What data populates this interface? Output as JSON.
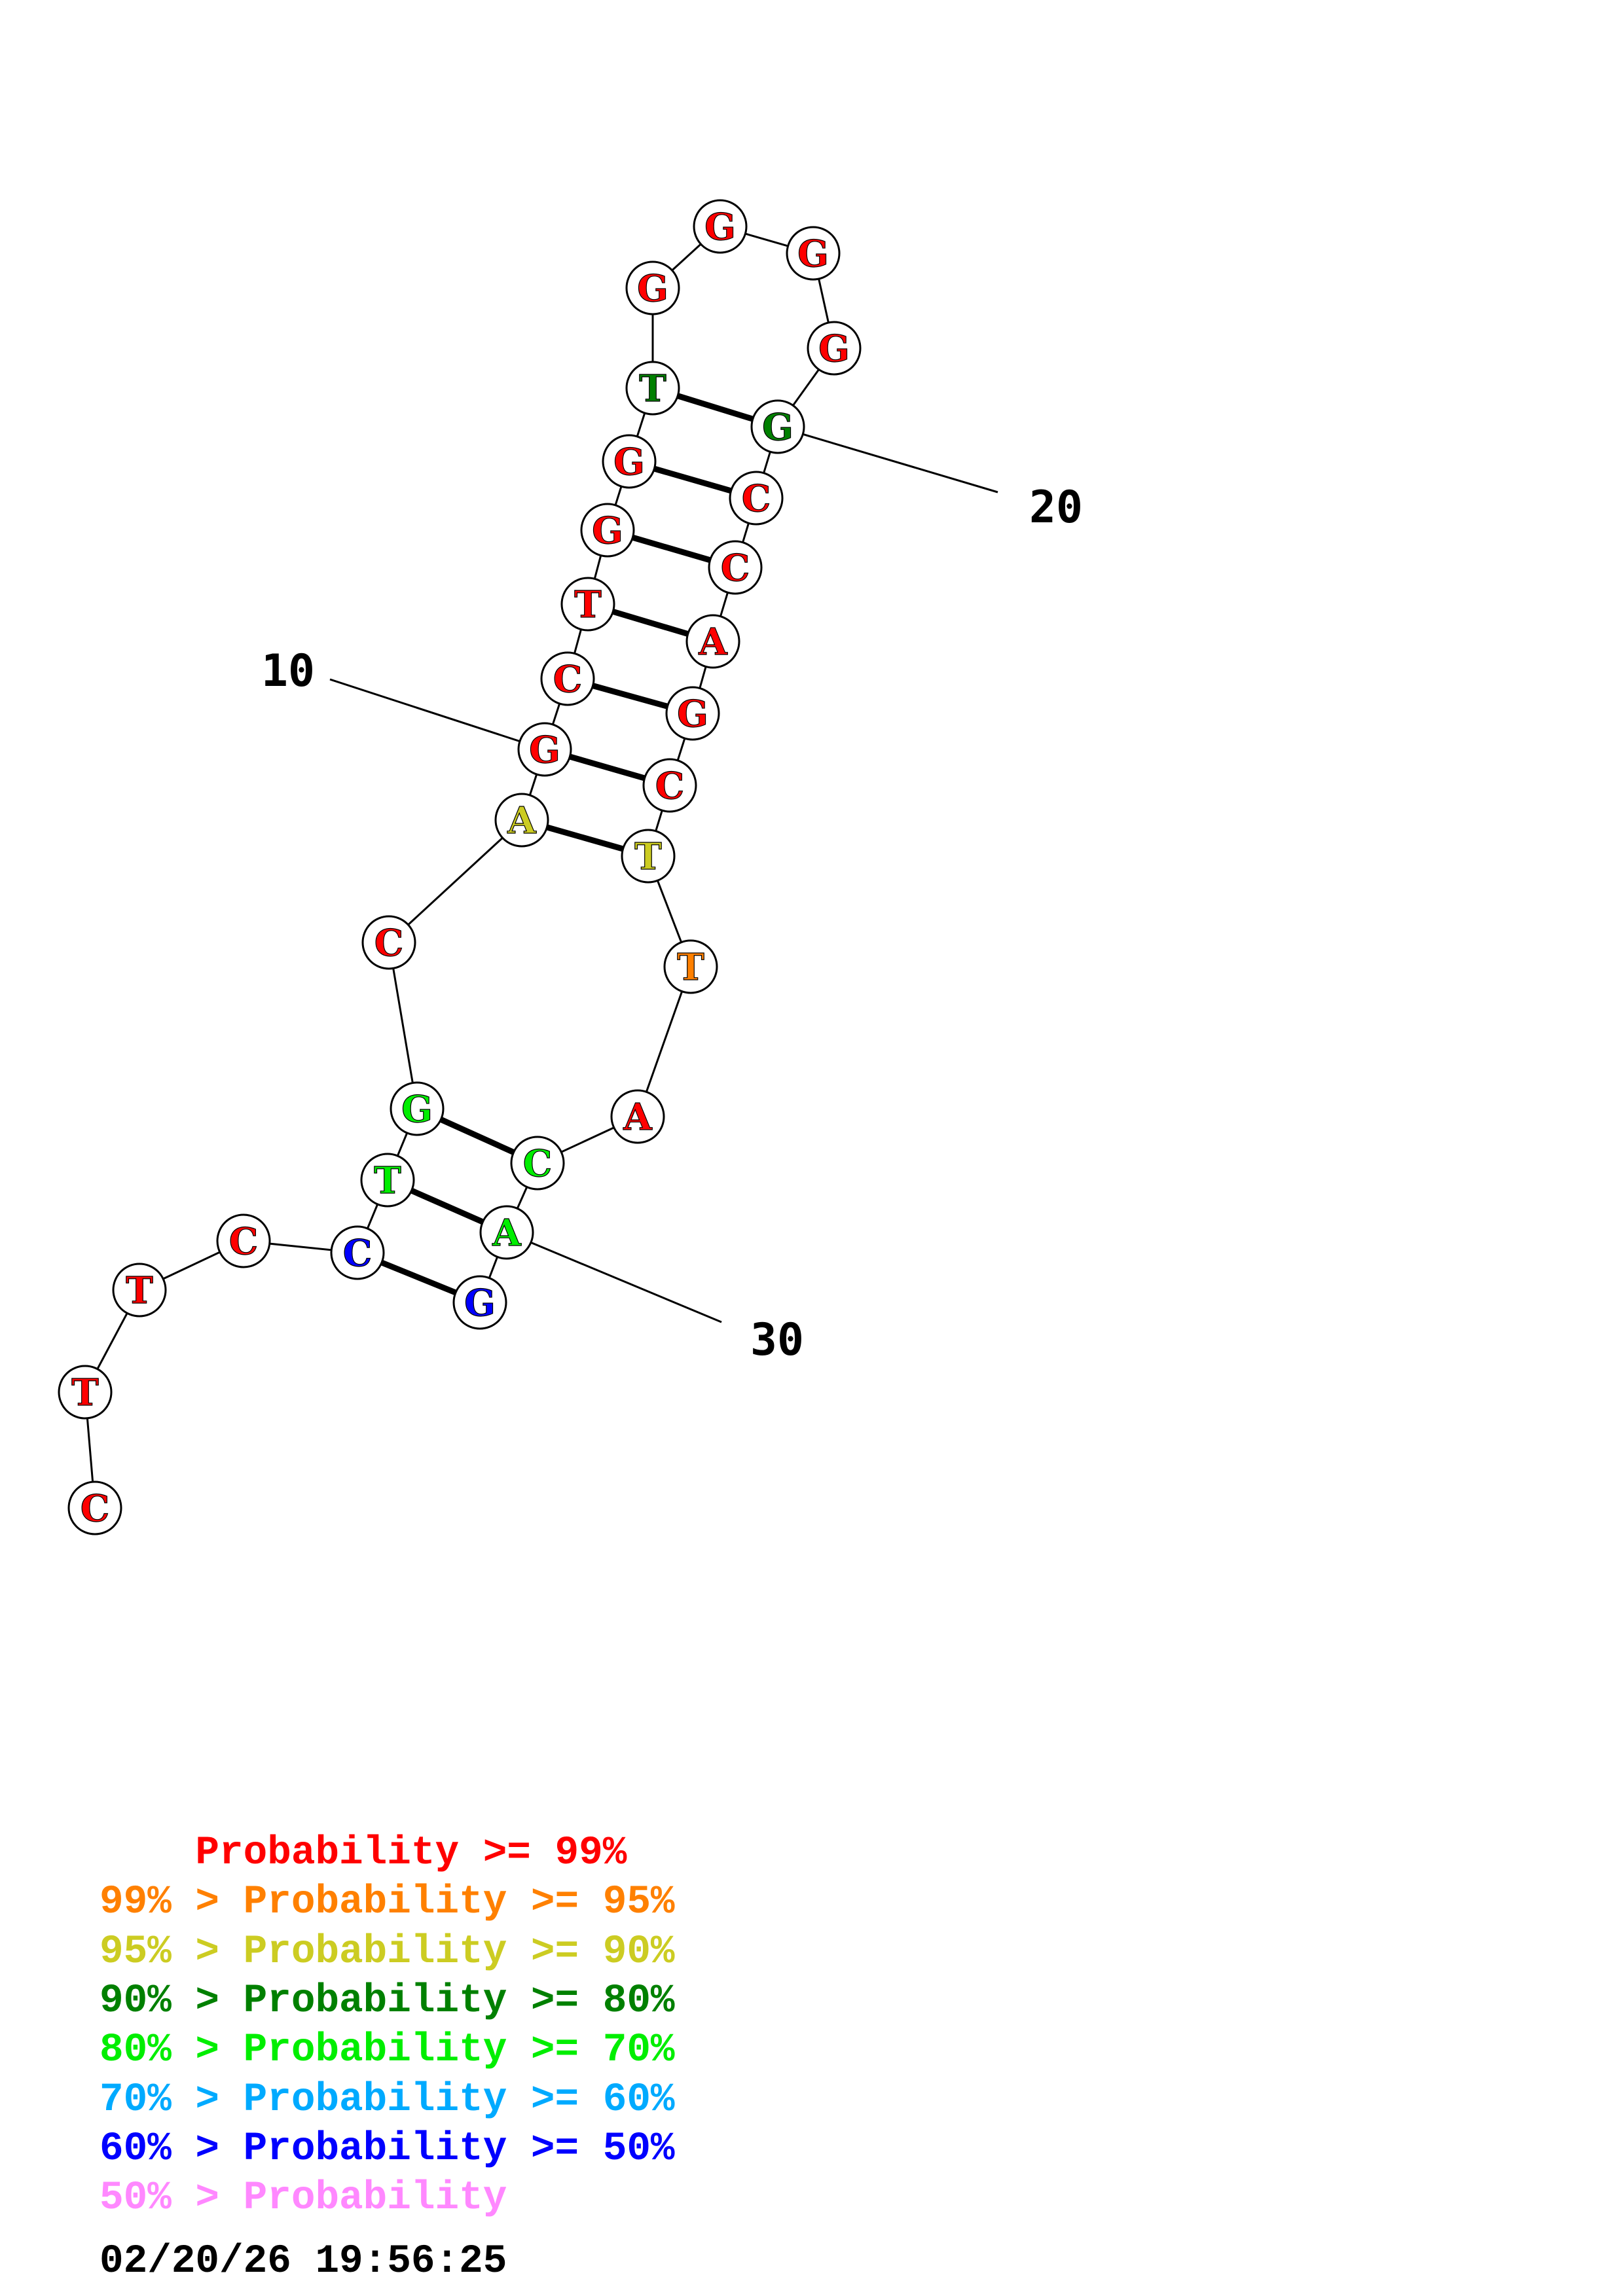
{
  "structure": {
    "bases": [
      {
        "n": 1,
        "letter": "C",
        "color": "#ff0000"
      },
      {
        "n": 2,
        "letter": "T",
        "color": "#ff0000"
      },
      {
        "n": 3,
        "letter": "T",
        "color": "#ff0000"
      },
      {
        "n": 4,
        "letter": "C",
        "color": "#ff0000"
      },
      {
        "n": 5,
        "letter": "C",
        "color": "#0000ff"
      },
      {
        "n": 6,
        "letter": "T",
        "color": "#00ee00"
      },
      {
        "n": 7,
        "letter": "G",
        "color": "#00ee00"
      },
      {
        "n": 8,
        "letter": "C",
        "color": "#ff0000"
      },
      {
        "n": 9,
        "letter": "A",
        "color": "#cccc22"
      },
      {
        "n": 10,
        "letter": "G",
        "color": "#ff0000"
      },
      {
        "n": 11,
        "letter": "C",
        "color": "#ff0000"
      },
      {
        "n": 12,
        "letter": "T",
        "color": "#ff0000"
      },
      {
        "n": 13,
        "letter": "G",
        "color": "#ff0000"
      },
      {
        "n": 14,
        "letter": "G",
        "color": "#ff0000"
      },
      {
        "n": 15,
        "letter": "T",
        "color": "#008000"
      },
      {
        "n": 16,
        "letter": "G",
        "color": "#ff0000"
      },
      {
        "n": 17,
        "letter": "G",
        "color": "#ff0000"
      },
      {
        "n": 18,
        "letter": "G",
        "color": "#ff0000"
      },
      {
        "n": 19,
        "letter": "G",
        "color": "#ff0000"
      },
      {
        "n": 20,
        "letter": "G",
        "color": "#008000"
      },
      {
        "n": 21,
        "letter": "C",
        "color": "#ff0000"
      },
      {
        "n": 22,
        "letter": "C",
        "color": "#ff0000"
      },
      {
        "n": 23,
        "letter": "A",
        "color": "#ff0000"
      },
      {
        "n": 24,
        "letter": "G",
        "color": "#ff0000"
      },
      {
        "n": 25,
        "letter": "C",
        "color": "#ff0000"
      },
      {
        "n": 26,
        "letter": "T",
        "color": "#cccc22"
      },
      {
        "n": 27,
        "letter": "T",
        "color": "#ff8000"
      },
      {
        "n": 28,
        "letter": "A",
        "color": "#ff0000"
      },
      {
        "n": 29,
        "letter": "C",
        "color": "#00ee00"
      },
      {
        "n": 30,
        "letter": "A",
        "color": "#00ee00"
      },
      {
        "n": 31,
        "letter": "G",
        "color": "#0000ff"
      }
    ],
    "pairs": [
      [
        5,
        31
      ],
      [
        6,
        30
      ],
      [
        7,
        29
      ],
      [
        9,
        26
      ],
      [
        10,
        25
      ],
      [
        11,
        24
      ],
      [
        12,
        23
      ],
      [
        13,
        22
      ],
      [
        14,
        21
      ],
      [
        15,
        20
      ]
    ],
    "tick_marks": [
      {
        "base": 10,
        "label": "10"
      },
      {
        "base": 20,
        "label": "20"
      },
      {
        "base": 30,
        "label": "30"
      }
    ]
  },
  "legend": {
    "entries": [
      {
        "prefix": "    ",
        "text": "    Probability >= 99%",
        "color": "#ff0000"
      },
      {
        "prefix": "99% > ",
        "text": "Probability >= 95%",
        "color": "#ff8000"
      },
      {
        "prefix": "95% > ",
        "text": "Probability >= 90%",
        "color": "#cccc22"
      },
      {
        "prefix": "90% > ",
        "text": "Probability >= 80%",
        "color": "#008000"
      },
      {
        "prefix": "80% > ",
        "text": "Probability >= 70%",
        "color": "#00ee00"
      },
      {
        "prefix": "70% > ",
        "text": "Probability >= 60%",
        "color": "#00aaff"
      },
      {
        "prefix": "60% > ",
        "text": "Probability >= 50%",
        "color": "#0000ff"
      },
      {
        "prefix": "50% > ",
        "text": "Probability",
        "color": "#ff88ff"
      }
    ],
    "timestamp": "02/20/26 19:56:25"
  }
}
